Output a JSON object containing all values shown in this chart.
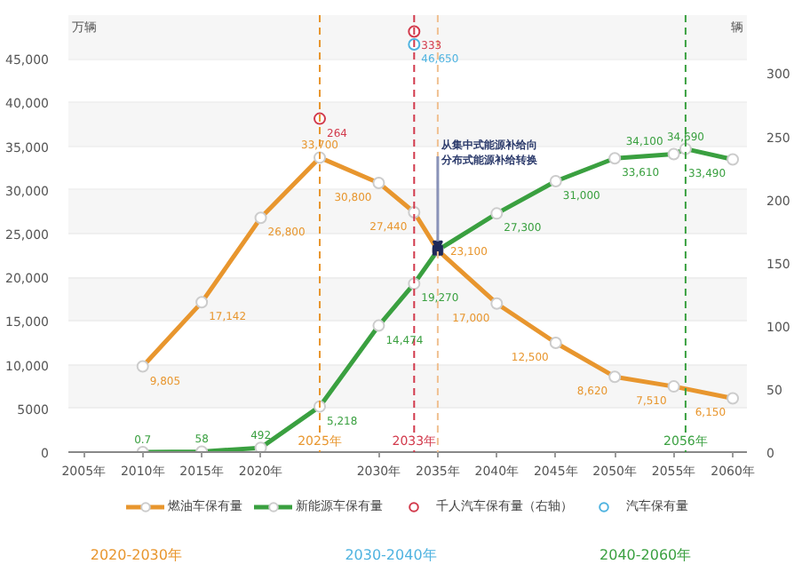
{
  "chart_data": {
    "type": "line",
    "x": [
      2010,
      2015,
      2020,
      2025,
      2030,
      2033,
      2035,
      2040,
      2045,
      2050,
      2055,
      2060
    ],
    "series": [
      {
        "name": "燃油车保有量",
        "color": "#e8962e",
        "values": [
          9805,
          17142,
          26800,
          33700,
          30800,
          27440,
          23100,
          17000,
          12500,
          8620,
          7510,
          6150
        ],
        "value_labels": [
          "9,805",
          "17,142",
          "26,800",
          "33,700",
          "30,800",
          "27,440",
          "23,100",
          "17,000",
          "12,500",
          "8,620",
          "7,510",
          "6,150"
        ]
      },
      {
        "name": "新能源车保有量",
        "color": "#3aa040",
        "x": [
          2010,
          2015,
          2020,
          2025,
          2030,
          2033,
          2035,
          2040,
          2045,
          2050,
          2055,
          2056,
          2060
        ],
        "values": [
          0.7,
          58,
          492,
          5218,
          14474,
          19270,
          23100,
          27300,
          31000,
          33610,
          34100,
          34690,
          33490
        ],
        "value_labels": [
          "0.7",
          "58",
          "492",
          "5,218",
          "14,474",
          "19,270",
          null,
          "27,300",
          "31,000",
          "33,610",
          "34,100",
          "34,690",
          "33,490"
        ]
      },
      {
        "name": "千人汽车保有量（右轴）",
        "color": "#d23a4c",
        "type": "scatter",
        "axis": "y2",
        "x": [
          2025,
          2033
        ],
        "values": [
          264,
          333
        ],
        "value_labels": [
          "264",
          "333"
        ]
      },
      {
        "name": "汽车保有量",
        "color": "#4fb3e0",
        "type": "scatter",
        "x": [
          2033
        ],
        "values": [
          46650
        ],
        "value_labels": [
          "46,650"
        ]
      }
    ],
    "ylabel": "万辆",
    "y2label": "辆",
    "xlim": [
      2003.7,
      2061.2
    ],
    "xticks": [
      {
        "value": 2005,
        "label": "2005年"
      },
      {
        "value": 2010,
        "label": "2010年"
      },
      {
        "value": 2015,
        "label": "2015年"
      },
      {
        "value": 2020,
        "label": "2020年"
      },
      {
        "value": 2030,
        "label": "2030年"
      },
      {
        "value": 2035,
        "label": "2035年"
      },
      {
        "value": 2040,
        "label": "2040年"
      },
      {
        "value": 2045,
        "label": "2045年"
      },
      {
        "value": 2050,
        "label": "2050年"
      },
      {
        "value": 2055,
        "label": "2055年"
      },
      {
        "value": 2060,
        "label": "2060年"
      }
    ],
    "ylim": [
      0,
      50000
    ],
    "yticks": [
      0,
      5000,
      {
        "value": 10000,
        "label": "10,000"
      },
      {
        "value": 15000,
        "label": "15,000"
      },
      {
        "value": 20000,
        "label": "20,000"
      },
      {
        "value": 25000,
        "label": "25,000"
      },
      {
        "value": 30000,
        "label": "30,000"
      },
      {
        "value": 35000,
        "label": "35,000"
      },
      {
        "value": 40000,
        "label": "40,000"
      },
      {
        "value": 45000,
        "label": "45,000"
      }
    ],
    "y2lim": [
      0,
      346
    ],
    "y2ticks": [
      0,
      50,
      100,
      150,
      200,
      250,
      300
    ],
    "ref_lines": [
      {
        "axis": "x",
        "value": 2025,
        "label": "2025年",
        "color": "#e8962e",
        "line_style": "dashed"
      },
      {
        "axis": "x",
        "value": 2033,
        "label": "2033年",
        "color": "#d23a4c",
        "line_style": "dashed"
      },
      {
        "axis": "x",
        "value": 2035,
        "label": null,
        "color": "#f0c090",
        "line_style": "dashed"
      },
      {
        "axis": "x",
        "value": 2056,
        "label": "2056年",
        "color": "#3aa040",
        "line_style": "dashed"
      }
    ],
    "annotations": [
      {
        "text": "从集中式能源补给向分布式能源补给转换",
        "x": 2035,
        "y": 23100
      },
      "2020-2030年",
      "2030-2040年",
      "2040-2060年"
    ],
    "grid": "y",
    "legend": "bottom",
    "marker": "circle",
    "line_style": "solid"
  }
}
